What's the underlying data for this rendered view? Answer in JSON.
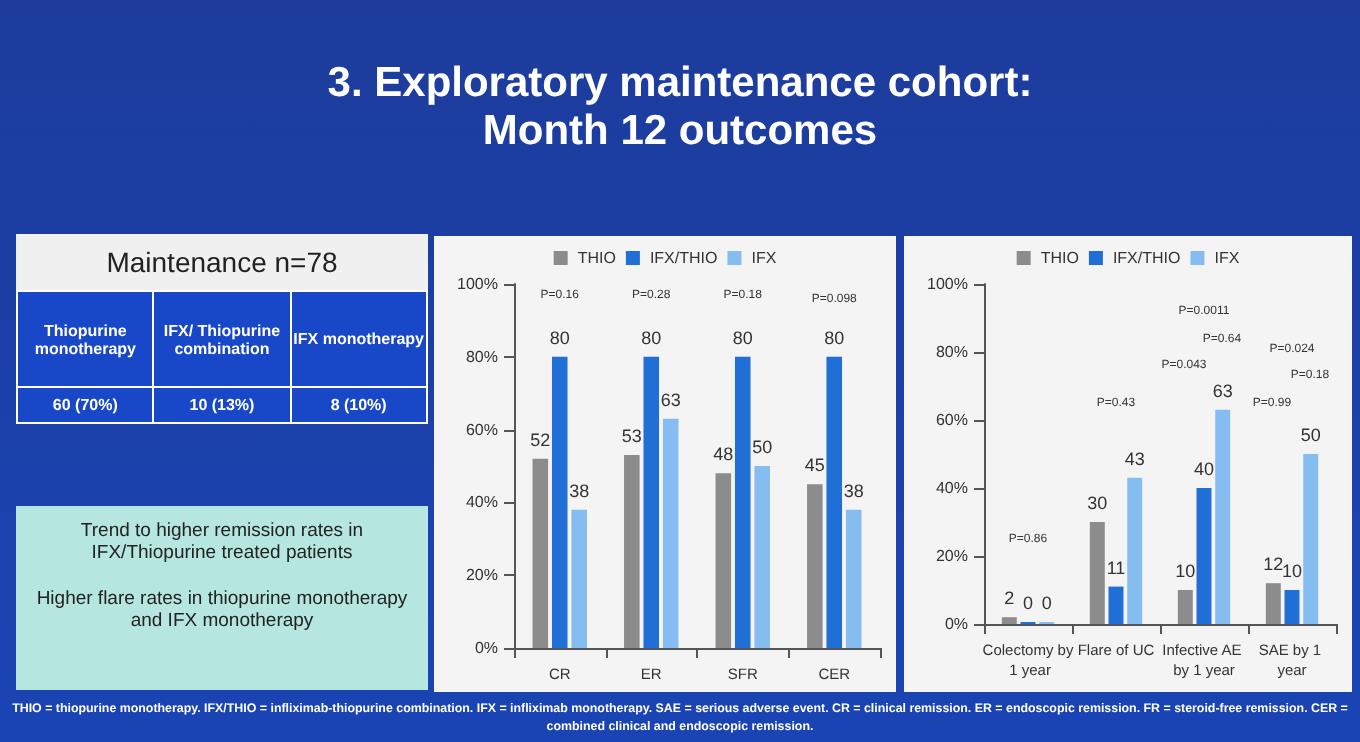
{
  "chart_data": [
    {
      "type": "other",
      "title": "3. Exploratory maintenance cohort:\nMonth 12 outcomes",
      "annotations": [
        "Maintenance n=78",
        "Thiopurine monotherapy",
        "IFX/ Thiopurine combination",
        "IFX monotherapy",
        "60 (70%)",
        "10 (13%)",
        "8 (10%)",
        "Trend to higher remission rates in IFX/Thiopurine treated patients",
        "Higher flare rates in thiopurine monotherapy and IFX monotherapy",
        "THIO = thiopurine monotherapy. IFX/THIO = infliximab-thiopurine combination. IFX = infliximab monotherapy. SAE = serious adverse event. CR = clinical remission. ER = endoscopic remission. FR = steroid-free remission. CER = combined clinical and endoscopic remission."
      ]
    },
    {
      "type": "bar",
      "categories": [
        "CR",
        "ER",
        "SFR",
        "CER"
      ],
      "series": [
        {
          "name": "THIO",
          "color": "#8c8c8c",
          "values": [
            52,
            53,
            48,
            45
          ]
        },
        {
          "name": "IFX/THIO",
          "color": "#1f6fd6",
          "values": [
            80,
            80,
            80,
            80
          ]
        },
        {
          "name": "IFX",
          "color": "#86bdf0",
          "values": [
            38,
            63,
            50,
            38
          ]
        }
      ],
      "ylim": [
        0,
        100
      ],
      "yticks": [
        {
          "value": 0,
          "label": "0%"
        },
        {
          "value": 20,
          "label": "20%"
        },
        {
          "value": 40,
          "label": "40%"
        },
        {
          "value": 60,
          "label": "60%"
        },
        {
          "value": 80,
          "label": "80%"
        },
        {
          "value": 100,
          "label": "100%"
        }
      ],
      "data_labels": true,
      "legend": "top",
      "grid": false,
      "annotations": [
        "P=0.16",
        "P=0.28",
        "P=0.18",
        "P=0.098"
      ]
    },
    {
      "type": "bar",
      "categories": [
        "Colectomy by 1 year",
        "Flare of UC",
        "Infective AE by 1 year",
        "SAE by 1 year"
      ],
      "series": [
        {
          "name": "THIO",
          "color": "#8c8c8c",
          "values": [
            2,
            30,
            10,
            12
          ]
        },
        {
          "name": "IFX/THIO",
          "color": "#1f6fd6",
          "values": [
            0,
            11,
            40,
            10
          ]
        },
        {
          "name": "IFX",
          "color": "#86bdf0",
          "values": [
            0,
            43,
            63,
            50
          ]
        }
      ],
      "ylim": [
        0,
        100
      ],
      "yticks": [
        {
          "value": 0,
          "label": "0%"
        },
        {
          "value": 20,
          "label": "20%"
        },
        {
          "value": 40,
          "label": "40%"
        },
        {
          "value": 60,
          "label": "60%"
        },
        {
          "value": 80,
          "label": "80%"
        },
        {
          "value": 100,
          "label": "100%"
        }
      ],
      "data_labels": true,
      "legend": "top",
      "grid": false,
      "annotations": [
        "P=0.86",
        "P=0.43",
        "P=0.0011",
        "P=0.64",
        "P=0.043",
        "P=0.024",
        "P=0.18",
        "P=0.99"
      ]
    }
  ]
}
